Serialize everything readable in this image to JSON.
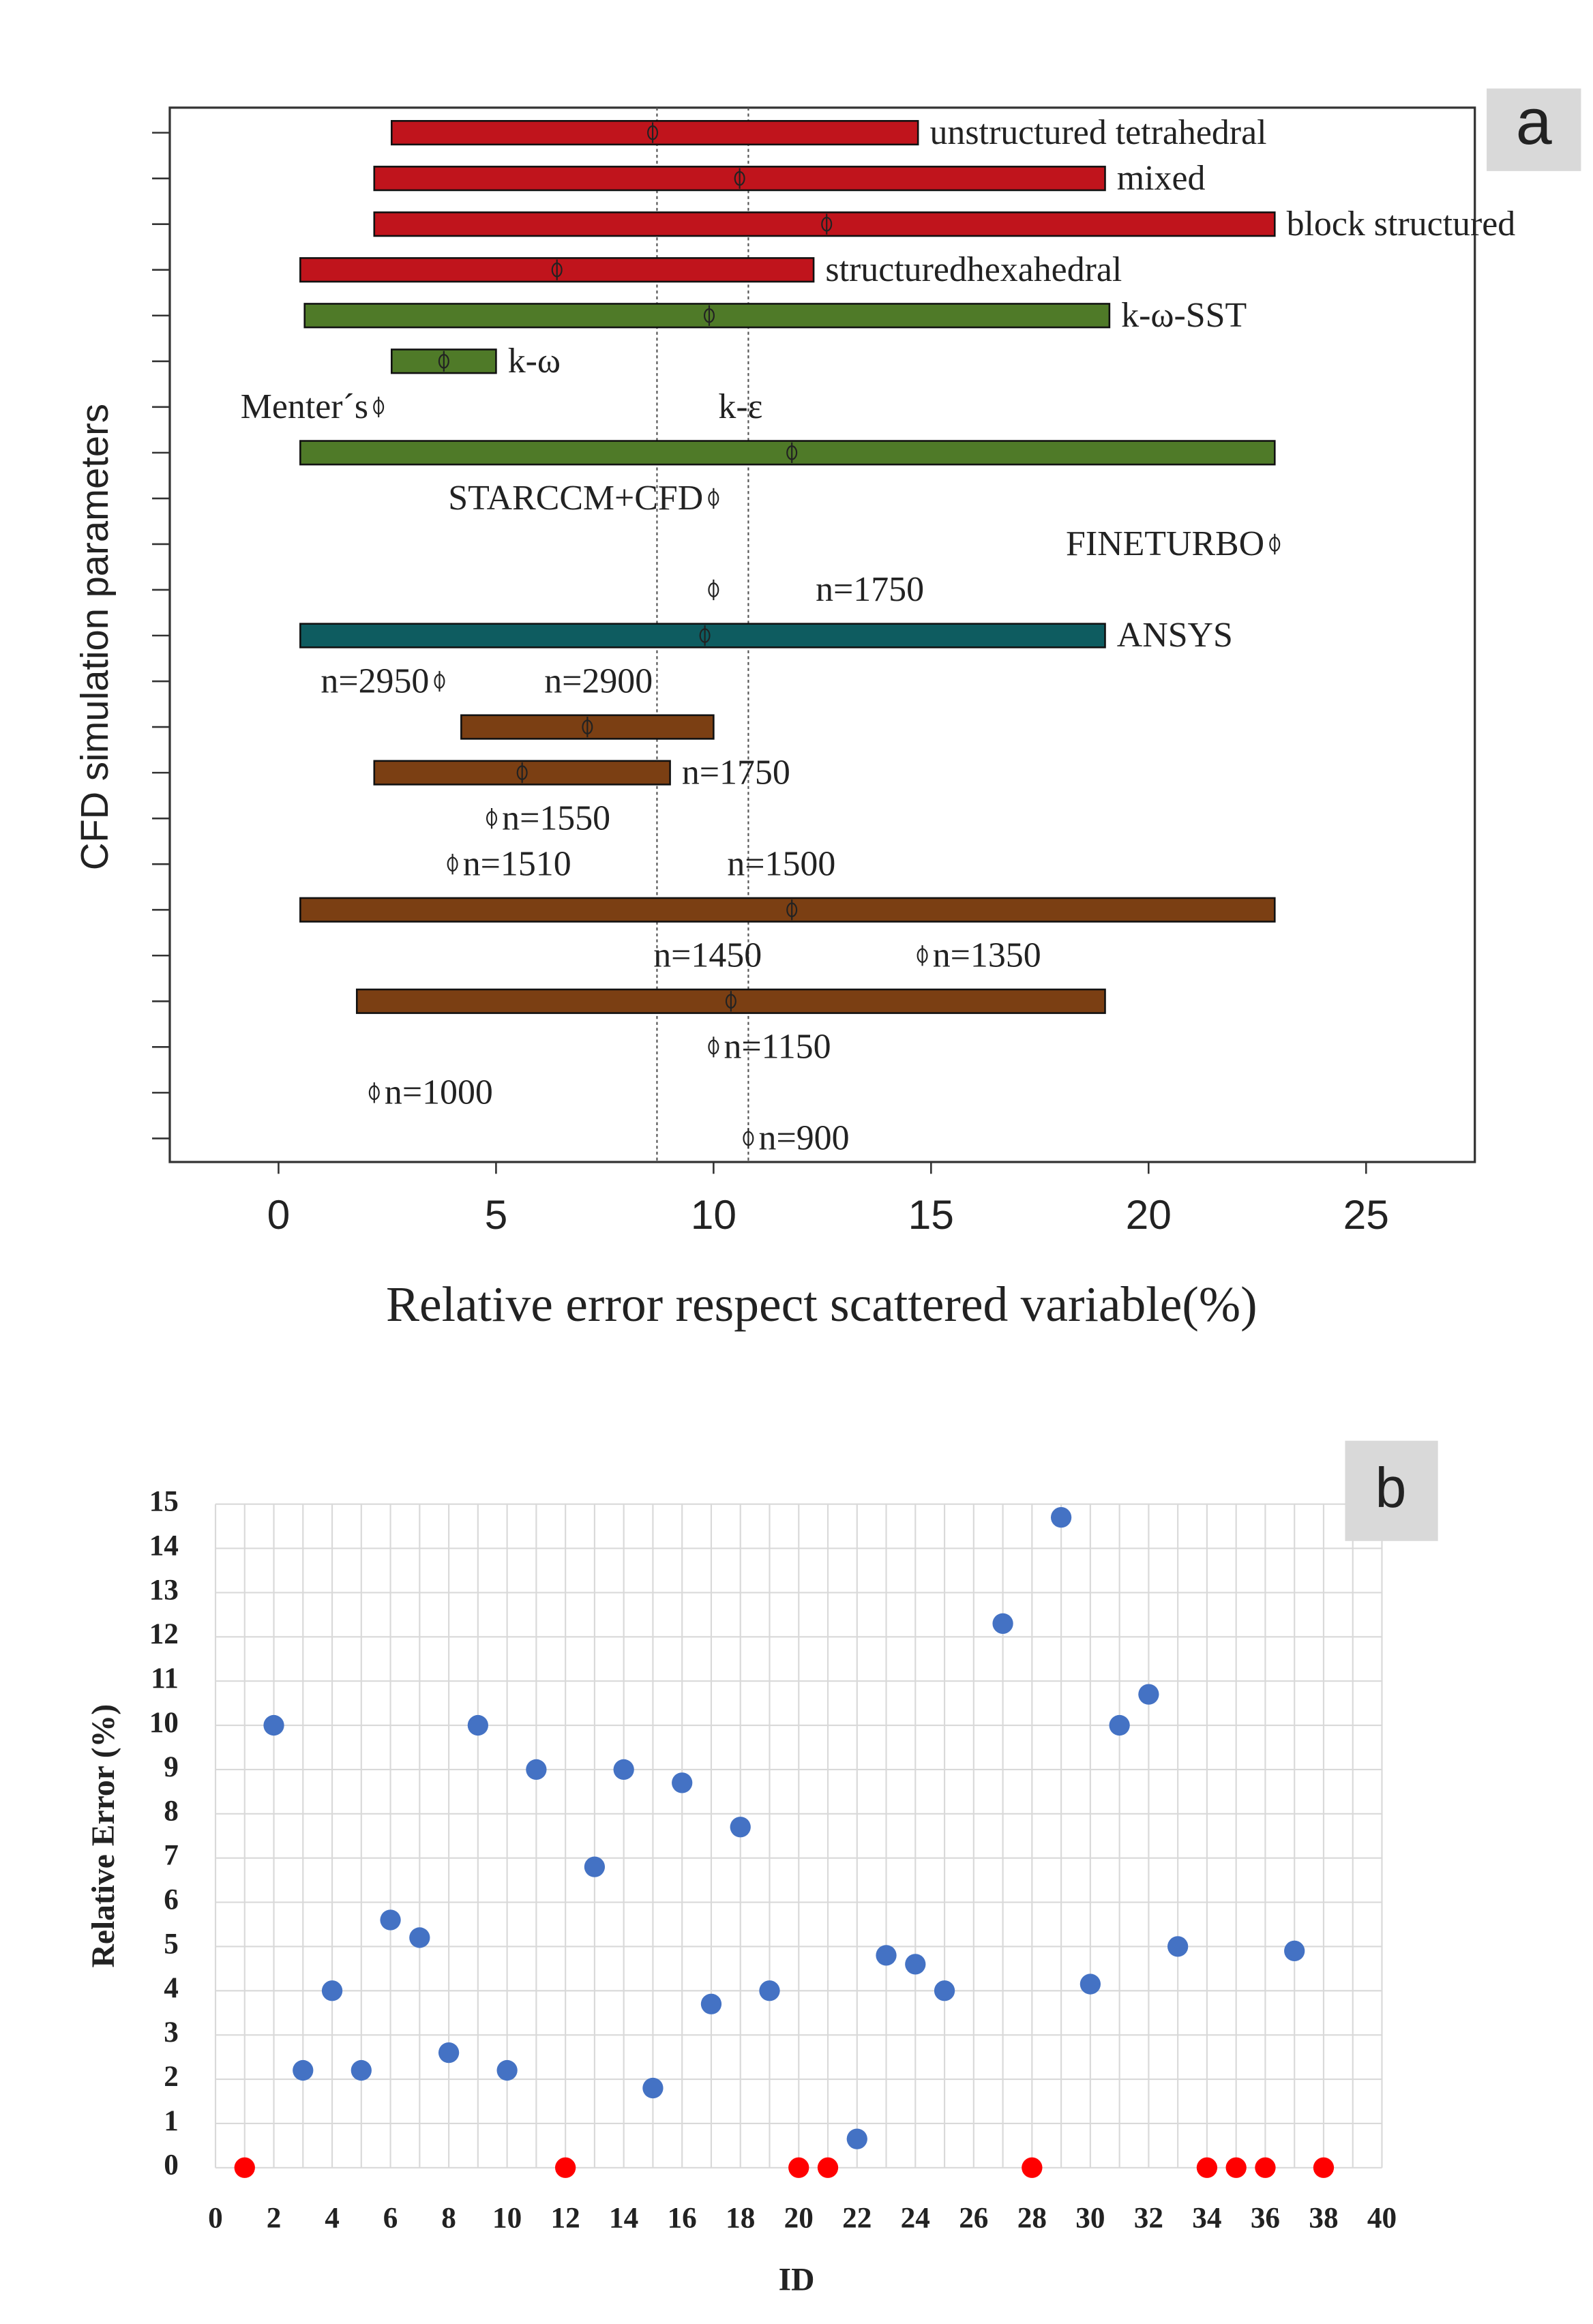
{
  "chart_data": [
    {
      "type": "range_bar",
      "tag": "a",
      "xlabel": "Relative error respect scattered variable(%)",
      "ylabel": "CFD simulation parameters",
      "xlim": [
        -2.5,
        27.5
      ],
      "xticks": [
        0,
        5,
        10,
        15,
        20,
        25
      ],
      "reference_lines": [
        8.7,
        10.8
      ],
      "bars": [
        {
          "start": 2.6,
          "end": 14.7,
          "mean": 8.6,
          "color": "#c0141c",
          "label": "unstructured tetrahedral"
        },
        {
          "start": 2.2,
          "end": 19.0,
          "mean": 10.6,
          "color": "#c0141c",
          "label": "mixed"
        },
        {
          "start": 2.2,
          "end": 22.9,
          "mean": 12.6,
          "color": "#c0141c",
          "label": "block structured"
        },
        {
          "start": 0.5,
          "end": 12.3,
          "mean": 6.4,
          "color": "#c0141c",
          "label": "structuredhexahedral"
        },
        {
          "start": 0.6,
          "end": 19.1,
          "mean": 9.9,
          "color": "#4f7a28",
          "label": "k-ω-SST"
        },
        {
          "start": 2.6,
          "end": 5.0,
          "mean": 3.8,
          "color": "#4f7a28",
          "label": "k-ω"
        },
        {
          "start": 0.5,
          "end": 22.9,
          "mean": 11.8,
          "color": "#4f7a28"
        },
        {
          "start": 0.5,
          "end": 19.0,
          "mean": 9.8,
          "color": "#0e5c60",
          "label": "ANSYS"
        },
        {
          "start": 4.2,
          "end": 10.0,
          "mean": 7.1,
          "color": "#7b3f13"
        },
        {
          "start": 2.2,
          "end": 9.0,
          "mean": 5.6,
          "color": "#7b3f13",
          "label": "n=1750"
        },
        {
          "start": 0.5,
          "end": 22.9,
          "mean": 11.8,
          "color": "#7b3f13"
        },
        {
          "start": 1.8,
          "end": 19.0,
          "mean": 10.4,
          "color": "#7b3f13"
        }
      ],
      "annotations": [
        {
          "text": "Menter´s",
          "marker": 2.3
        },
        {
          "text": "k-ε",
          "marker": null
        },
        {
          "text": "STARCCM+CFD",
          "marker": 10.0
        },
        {
          "text": "FINETURBO",
          "marker": 22.9
        },
        {
          "text": "n=1750",
          "marker": 10.0
        },
        {
          "text": "n=2950",
          "marker": 3.7
        },
        {
          "text": "n=2900",
          "marker": null
        },
        {
          "text": "n=1550",
          "marker": 4.9
        },
        {
          "text": "n=1510",
          "marker": 4.0
        },
        {
          "text": "n=1500",
          "marker": null
        },
        {
          "text": "n=1450",
          "marker": null
        },
        {
          "text": "n=1350",
          "marker": 14.8
        },
        {
          "text": "n=1150",
          "marker": 10.0
        },
        {
          "text": "n=1000",
          "marker": 2.2
        },
        {
          "text": "n=900",
          "marker": 10.8
        }
      ]
    },
    {
      "type": "scatter",
      "tag": "b",
      "xlabel": "ID",
      "ylabel": "Relative Error (%)",
      "xlim": [
        0,
        40
      ],
      "xticks": [
        0,
        2,
        4,
        6,
        8,
        10,
        12,
        14,
        16,
        18,
        20,
        22,
        24,
        26,
        28,
        30,
        32,
        34,
        36,
        38,
        40
      ],
      "xminorticks": [
        1,
        3,
        5,
        7,
        9,
        11,
        13,
        15,
        17,
        19,
        21,
        23,
        25,
        27,
        29,
        31,
        33,
        35,
        37,
        39
      ],
      "ylim": [
        0,
        15
      ],
      "yticks": [
        0,
        1,
        2,
        3,
        4,
        5,
        6,
        7,
        8,
        9,
        10,
        11,
        12,
        13,
        14,
        15
      ],
      "grid": true,
      "series": [
        {
          "color": "#4472c4",
          "x": [
            2,
            3,
            4,
            5,
            6,
            7,
            8,
            9,
            10,
            11,
            13,
            14,
            15,
            16,
            17,
            18,
            19,
            22,
            23,
            24,
            25,
            27,
            29,
            30,
            31,
            32,
            33,
            37
          ],
          "values": [
            10,
            2.2,
            4,
            2.2,
            5.6,
            5.2,
            2.6,
            10,
            2.2,
            9,
            6.8,
            9,
            1.8,
            8.7,
            3.7,
            7.7,
            4,
            0.65,
            4.8,
            4.6,
            4,
            12.3,
            14.7,
            4.15,
            10,
            10.7,
            5,
            4.9
          ]
        },
        {
          "color": "#ff0000",
          "x": [
            1,
            12,
            20,
            21,
            28,
            34,
            35,
            36,
            38
          ],
          "values": [
            0,
            0,
            0,
            0,
            0,
            0,
            0,
            0,
            0
          ]
        }
      ]
    }
  ]
}
